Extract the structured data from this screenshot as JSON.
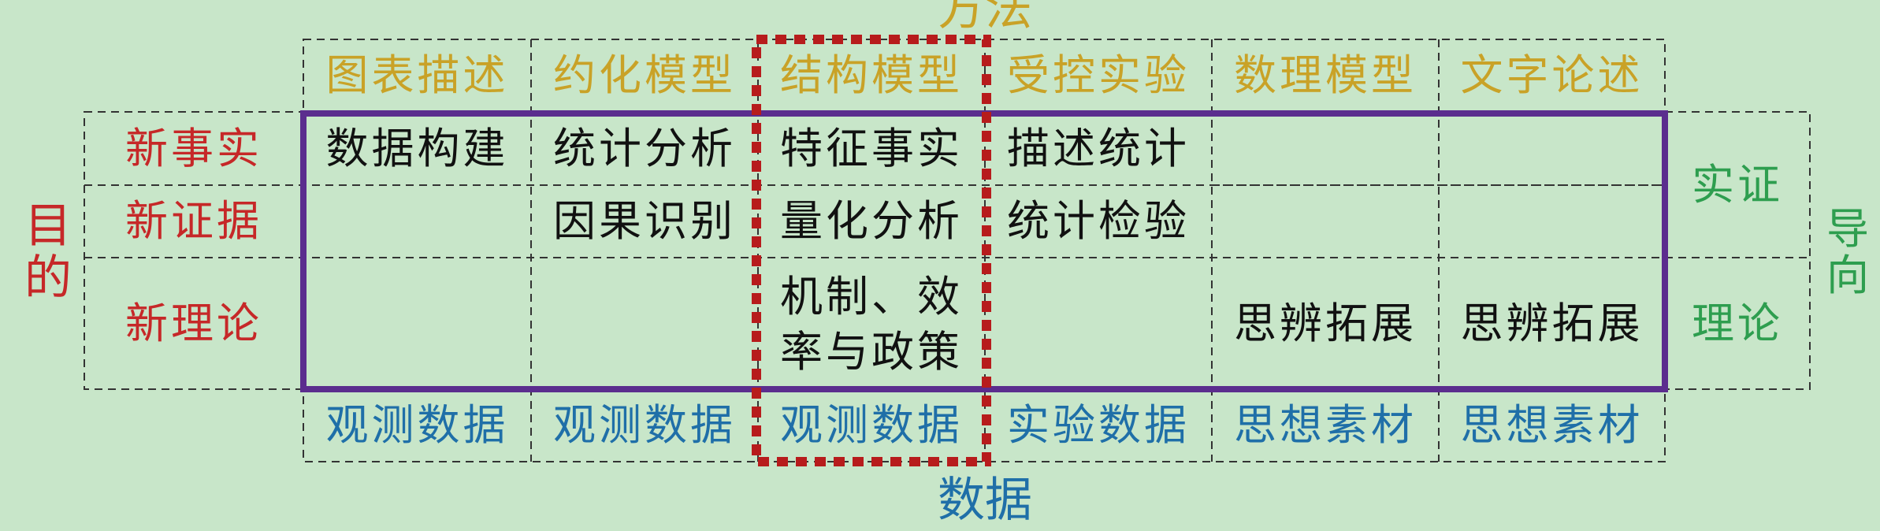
{
  "axes": {
    "method_title": "方法",
    "data_title": "数据",
    "purpose_title": [
      "目",
      "的"
    ],
    "orientation_title": [
      "导",
      "向"
    ]
  },
  "methods": [
    "图表描述",
    "约化模型",
    "结构模型",
    "受控实验",
    "数理模型",
    "文字论述"
  ],
  "purposes": [
    "新事实",
    "新证据",
    "新理论"
  ],
  "cells": {
    "row1": [
      "数据构建",
      "统计分析",
      "特征事实",
      "描述统计",
      "",
      ""
    ],
    "row2": [
      "",
      "因果识别",
      "量化分析",
      "统计检验",
      "",
      ""
    ],
    "row3": [
      "",
      "",
      "机制、效率与政策",
      "",
      "思辨拓展",
      "思辨拓展"
    ]
  },
  "data_types": [
    "观测数据",
    "观测数据",
    "观测数据",
    "实验数据",
    "思想素材",
    "思想素材"
  ],
  "orientations": [
    "实证",
    "理论"
  ],
  "colors": {
    "background": "#c8e6c9",
    "method": "#c9a227",
    "purpose": "#c62828",
    "data_type": "#1f6fa8",
    "orientation": "#2e9e4f",
    "highlight_box": "#5b2d8e",
    "structural_column": "#b71c1c"
  }
}
